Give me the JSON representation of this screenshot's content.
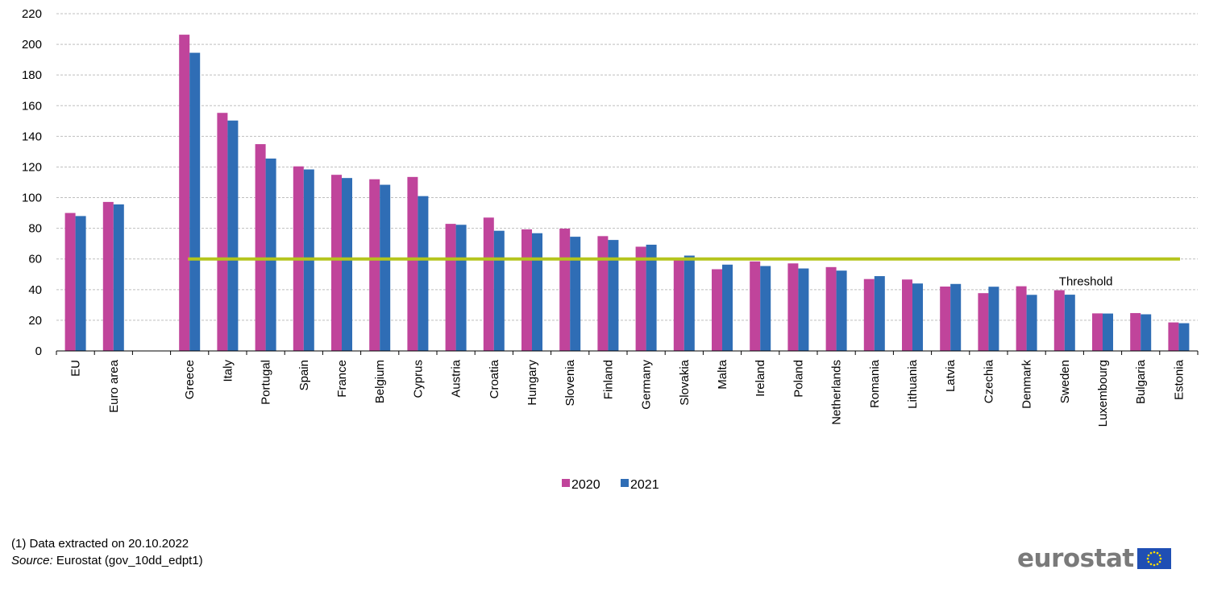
{
  "colors": {
    "2020": "#c0449b",
    "2021": "#2f6db5",
    "threshold": "#b5c51d",
    "grid": "#bfbfbf"
  },
  "chart_data": {
    "type": "bar",
    "title": "",
    "xlabel": "",
    "ylabel": "",
    "ylim": [
      0,
      220
    ],
    "yticks": [
      0,
      20,
      40,
      60,
      80,
      100,
      120,
      140,
      160,
      180,
      200,
      220
    ],
    "grid": true,
    "legend_position": "bottom",
    "categories": [
      "EU",
      "Euro area",
      "",
      "Greece",
      "Italy",
      "Portugal",
      "Spain",
      "France",
      "Belgium",
      "Cyprus",
      "Austria",
      "Croatia",
      "Hungary",
      "Slovenia",
      "Finland",
      "Germany",
      "Slovakia",
      "Malta",
      "Ireland",
      "Poland",
      "Netherlands",
      "Romania",
      "Lithuania",
      "Latvia",
      "Czechia",
      "Denmark",
      "Sweden",
      "Luxembourg",
      "Bulgaria",
      "Estonia"
    ],
    "series": [
      {
        "name": "2020",
        "values": [
          90.0,
          97.2,
          null,
          206.3,
          155.3,
          134.9,
          120.4,
          114.9,
          112.0,
          113.5,
          82.9,
          87.0,
          79.3,
          79.8,
          74.9,
          68.0,
          59.7,
          53.3,
          58.4,
          57.1,
          54.7,
          46.9,
          46.6,
          42.0,
          37.7,
          42.2,
          39.6,
          24.5,
          24.7,
          18.6
        ]
      },
      {
        "name": "2021",
        "values": [
          88.0,
          95.6,
          null,
          194.5,
          150.3,
          125.5,
          118.4,
          112.8,
          108.4,
          101.0,
          82.3,
          78.4,
          76.8,
          74.5,
          72.4,
          69.3,
          62.2,
          56.3,
          55.4,
          53.8,
          52.4,
          48.8,
          44.0,
          43.7,
          41.9,
          36.6,
          36.7,
          24.4,
          23.9,
          18.1
        ]
      }
    ],
    "threshold": {
      "label": "Threshold",
      "value": 60,
      "from_category": "Greece",
      "to_category": "Estonia"
    }
  },
  "footnote": {
    "line1": "(1) Data extracted on 20.10.2022",
    "source_label": "Source:",
    "source_text": " Eurostat (gov_10dd_edpt1)"
  },
  "logo": {
    "text": "eurostat"
  }
}
